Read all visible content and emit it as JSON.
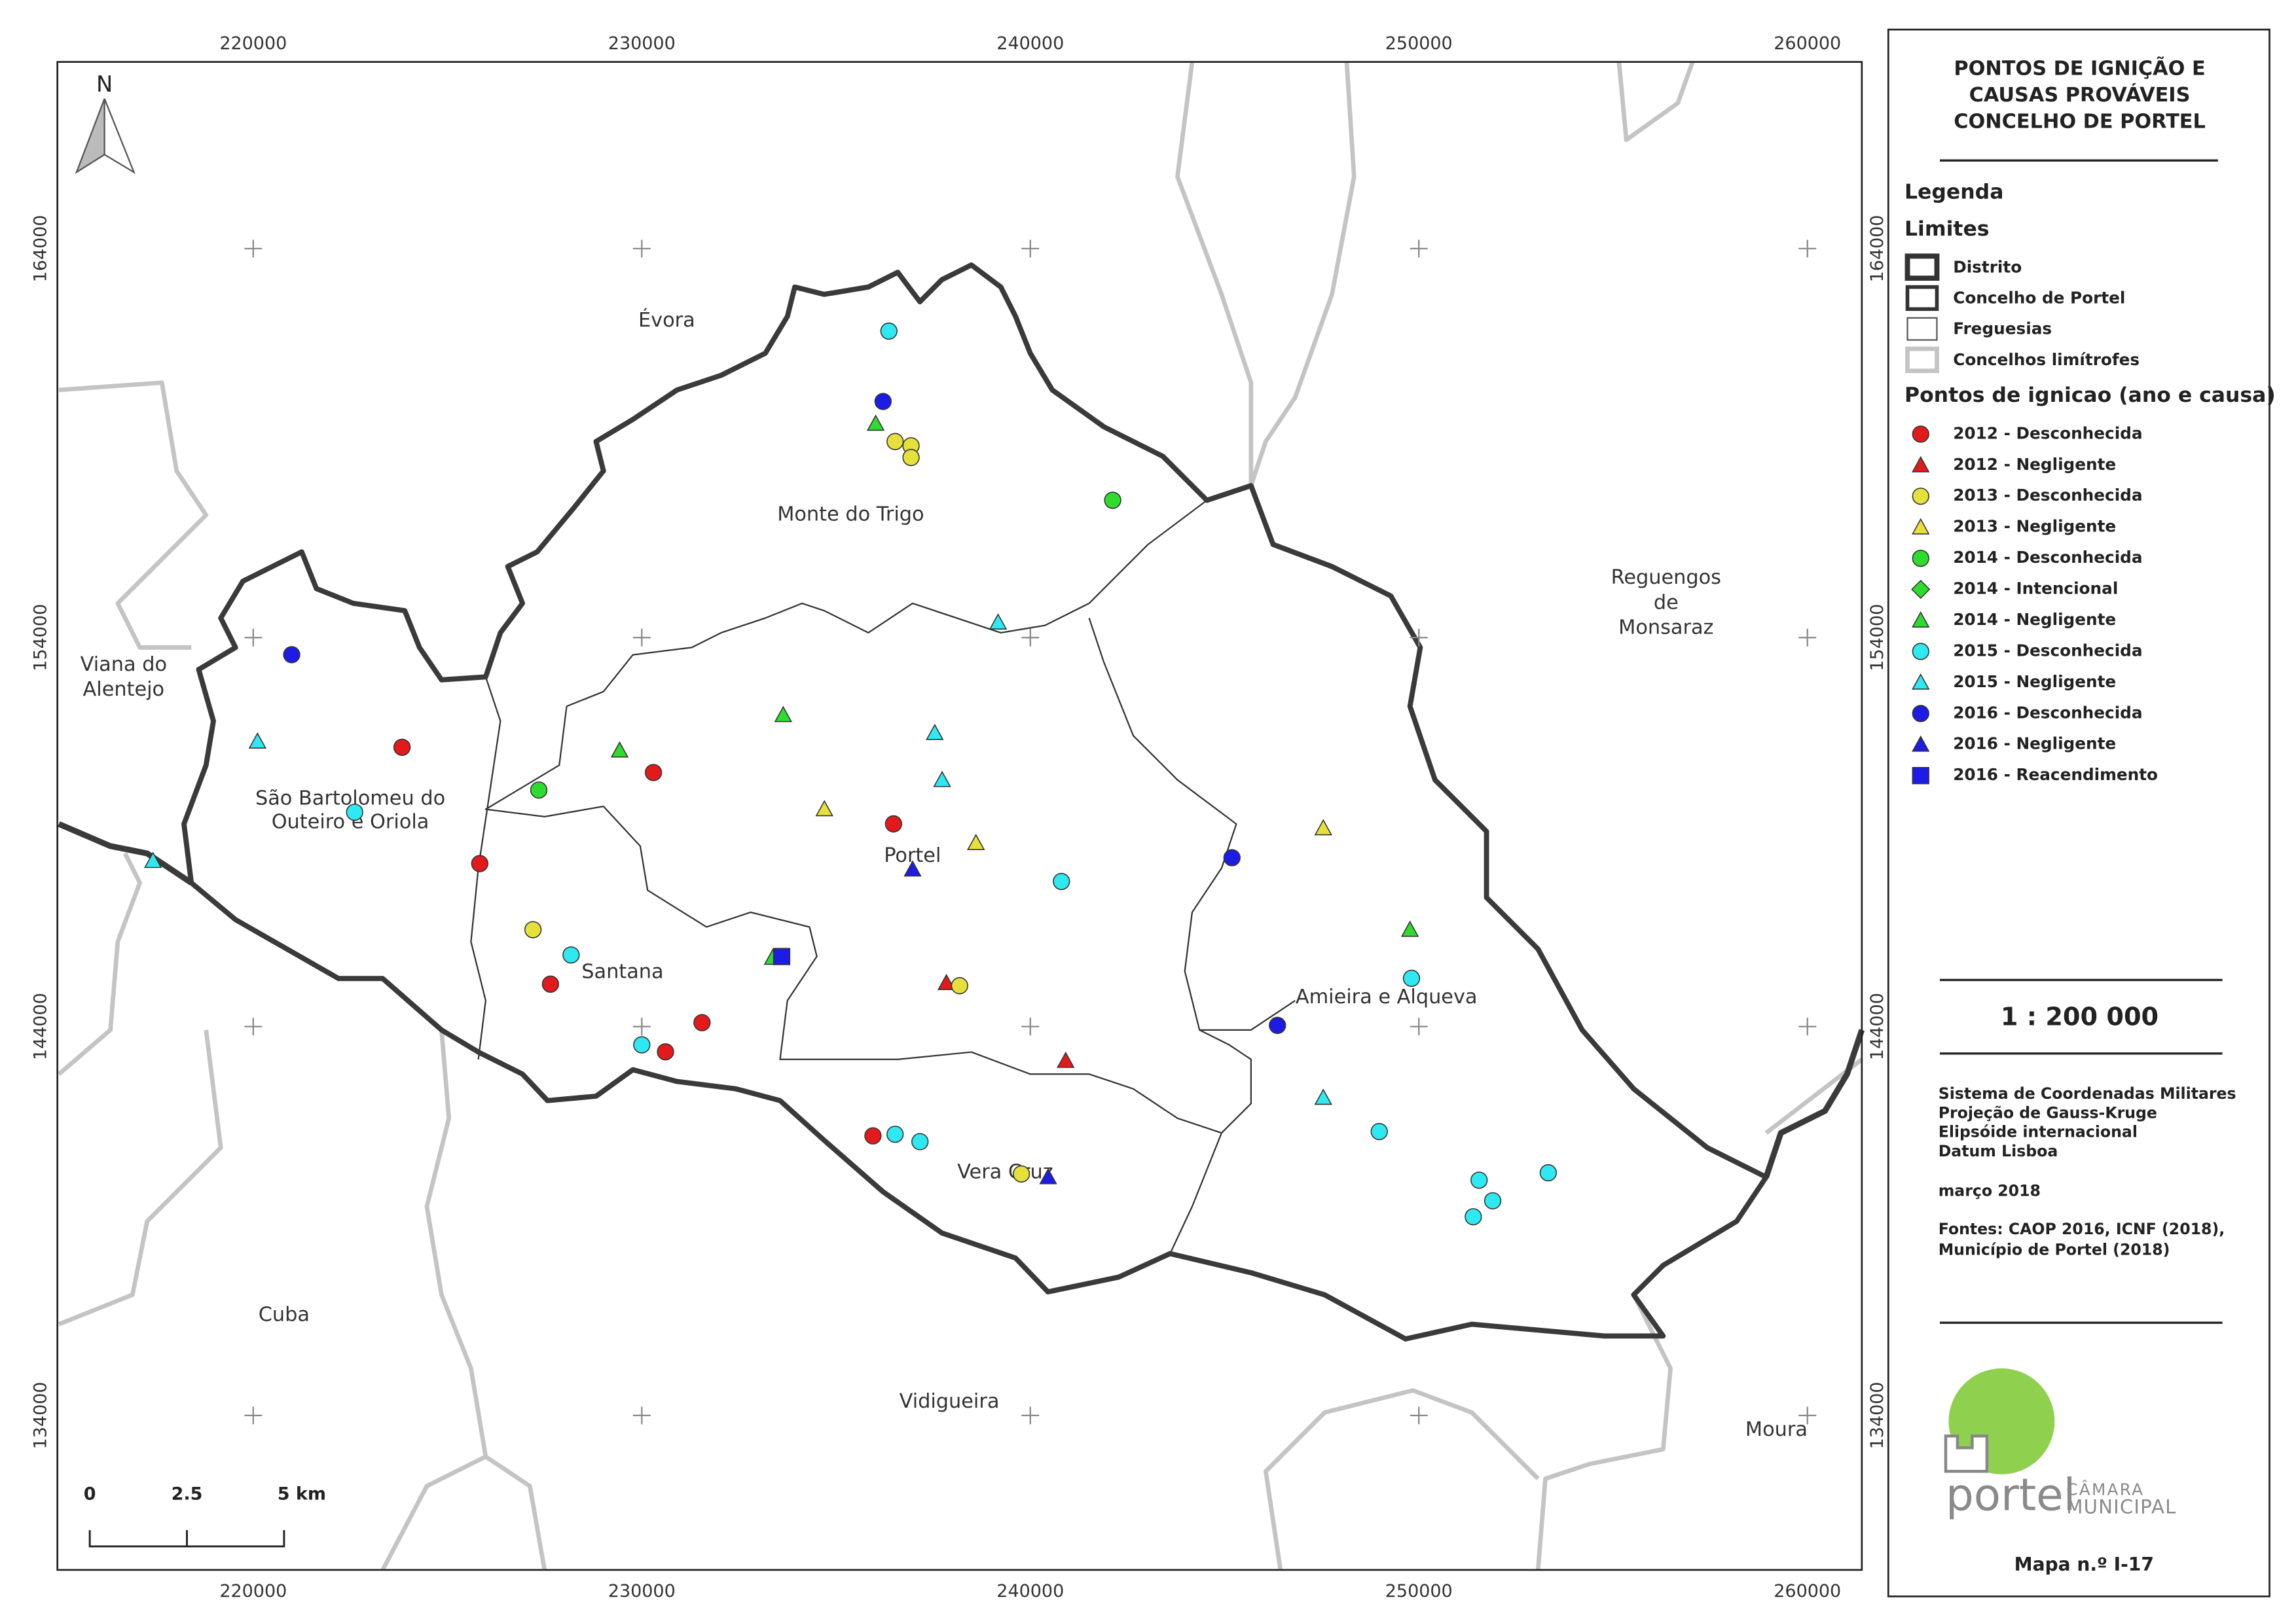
{
  "map": {
    "title": [
      "PONTOS DE IGNIÇÃO E",
      "CAUSAS PROVÁVEIS",
      "CONCELHO DE PORTEL"
    ],
    "north": "N",
    "xlim": [
      214960,
      261400
    ],
    "ylim": [
      130030,
      168800
    ],
    "xticks": [
      220000,
      230000,
      240000,
      250000,
      260000
    ],
    "yticks": [
      134000,
      144000,
      154000,
      164000
    ],
    "legend_title": "Legenda",
    "limits_title": "Limites",
    "limits": [
      "Distrito",
      "Concelho de Portel",
      "Freguesias",
      "Concelhos limítrofes"
    ],
    "points_title": "Pontos de ignicao (ano e causa)",
    "series": [
      {
        "name": "2012 - Desconhecida",
        "color": "#e31a1c",
        "shape": "circle",
        "x": [
          223830,
          230300,
          236480,
          225830,
          227650,
          231550,
          230610,
          235950
        ],
        "y": [
          151180,
          150530,
          149210,
          148190,
          145090,
          144100,
          143350,
          141190
        ]
      },
      {
        "name": "2012 - Negligente",
        "color": "#e31a1c",
        "shape": "triangle",
        "x": [
          237840,
          240910
        ],
        "y": [
          145120,
          143120
        ]
      },
      {
        "name": "2013 - Desconhecida",
        "color": "#e6e03a",
        "shape": "circle",
        "x": [
          236520,
          236930,
          236930,
          227200,
          238180,
          239770
        ],
        "y": [
          159040,
          158930,
          158630,
          146490,
          145050,
          140210
        ]
      },
      {
        "name": "2013 - Negligente",
        "color": "#e6e03a",
        "shape": "triangle",
        "x": [
          234700,
          238600,
          247540
        ],
        "y": [
          149590,
          148720,
          149100
        ]
      },
      {
        "name": "2014 - Desconhecida",
        "color": "#2edc2e",
        "shape": "circle",
        "x": [
          242120,
          227350
        ],
        "y": [
          157530,
          150080
        ]
      },
      {
        "name": "2014 - Intencional",
        "color": "#2edc2e",
        "shape": "diamond",
        "x": [],
        "y": []
      },
      {
        "name": "2014 - Negligente",
        "color": "#2edc2e",
        "shape": "triangle",
        "x": [
          236020,
          233640,
          229430,
          249770,
          233370
        ],
        "y": [
          159500,
          152010,
          151100,
          146490,
          145770
        ]
      },
      {
        "name": "2015 - Desconhecida",
        "color": "#2ee9f2",
        "shape": "circle",
        "x": [
          236360,
          222610,
          240800,
          228180,
          249810,
          230000,
          236520,
          237160,
          248980,
          251550,
          253330,
          251900,
          251400
        ],
        "y": [
          161880,
          149510,
          147730,
          145840,
          145240,
          143530,
          141230,
          141040,
          141300,
          140050,
          140240,
          139520,
          139110
        ]
      },
      {
        "name": "2015 - Negligente",
        "color": "#2ee9f2",
        "shape": "triangle",
        "x": [
          239170,
          220110,
          237540,
          237730,
          217420,
          247540
        ],
        "y": [
          154390,
          151330,
          151550,
          150340,
          148260,
          142170
        ]
      },
      {
        "name": "2016 - Desconhecida",
        "color": "#1c1ce6",
        "shape": "circle",
        "x": [
          236210,
          220990,
          245190,
          246360
        ],
        "y": [
          160070,
          153560,
          148340,
          144030
        ]
      },
      {
        "name": "2016 - Negligente",
        "color": "#1c1ce6",
        "shape": "triangle",
        "x": [
          236970,
          240460
        ],
        "y": [
          148040,
          140130
        ]
      },
      {
        "name": "2016 - Reacendimento",
        "color": "#1c1ce6",
        "shape": "square",
        "x": [
          233600
        ],
        "y": [
          145800
        ]
      }
    ],
    "places": [
      [
        "Évora"
      ],
      [
        "Monte do Trigo"
      ],
      [
        "Reguengos",
        "de",
        "Monsaraz"
      ],
      [
        "Viana do",
        "Alentejo"
      ],
      [
        "São Bartolomeu do",
        "Outeiro e Oriola"
      ],
      [
        "Portel"
      ],
      [
        "Santana"
      ],
      [
        "Amieira e Alqueva"
      ],
      [
        "Vera Cruz"
      ],
      [
        "Cuba"
      ],
      [
        "Vidigueira"
      ],
      [
        "Moura"
      ]
    ],
    "scale": "1 : 200 000",
    "scale_bar": [
      "0",
      "2.5",
      "5 km"
    ],
    "notes": [
      "Sistema de Coordenadas Militares",
      "Projeção de Gauss-Kruge",
      "Elipsóide internacional",
      "Datum Lisboa",
      "março 2018",
      "Fontes: CAOP 2016, ICNF (2018),",
      "Município de Portel (2018)"
    ],
    "logo": [
      "portel",
      "CÂMARA",
      "MUNICIPAL"
    ],
    "map_number": "Mapa n.º I-17"
  }
}
